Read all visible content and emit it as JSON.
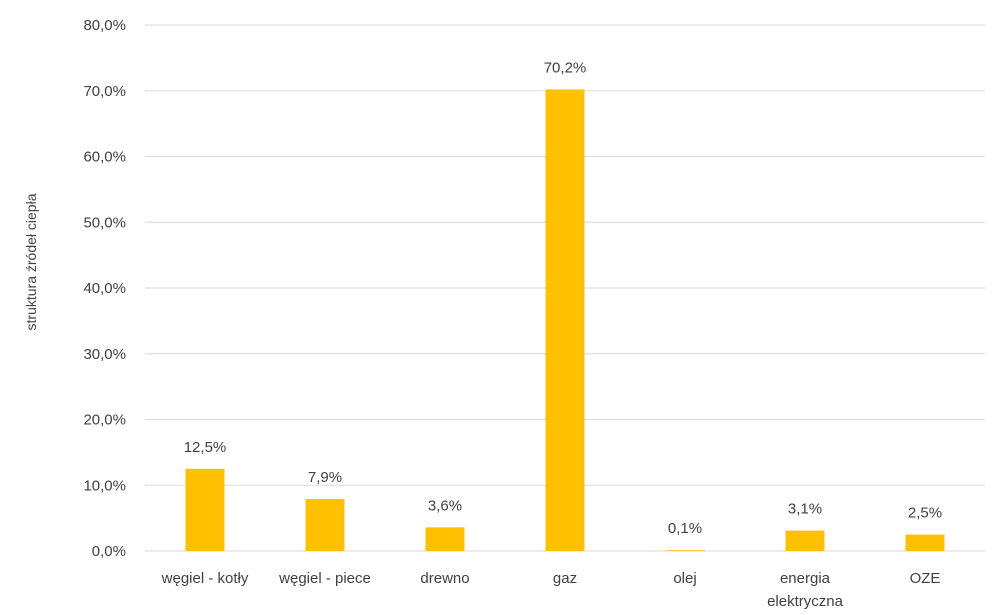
{
  "chart_data": {
    "type": "bar",
    "categories": [
      [
        "węgiel - kotły"
      ],
      [
        "węgiel - piece"
      ],
      [
        "drewno"
      ],
      [
        "gaz"
      ],
      [
        "olej"
      ],
      [
        "energia",
        "elektryczna"
      ],
      [
        "OZE"
      ]
    ],
    "values": [
      12.5,
      7.9,
      3.6,
      70.2,
      0.1,
      3.1,
      2.5
    ],
    "data_labels": [
      "12,5%",
      "7,9%",
      "3,6%",
      "70,2%",
      "0,1%",
      "3,1%",
      "2,5%"
    ],
    "y_ticks": [
      "0,0%",
      "10,0%",
      "20,0%",
      "30,0%",
      "40,0%",
      "50,0%",
      "60,0%",
      "70,0%",
      "80,0%"
    ],
    "ylim": [
      0,
      80
    ],
    "ylabel": "struktura źródeł ciepła",
    "xlabel": "",
    "title": "",
    "grid": true,
    "legend": "none",
    "colors": {
      "bar": "#FFC000",
      "grid": "#D9D9D9",
      "text": "#404040"
    }
  }
}
